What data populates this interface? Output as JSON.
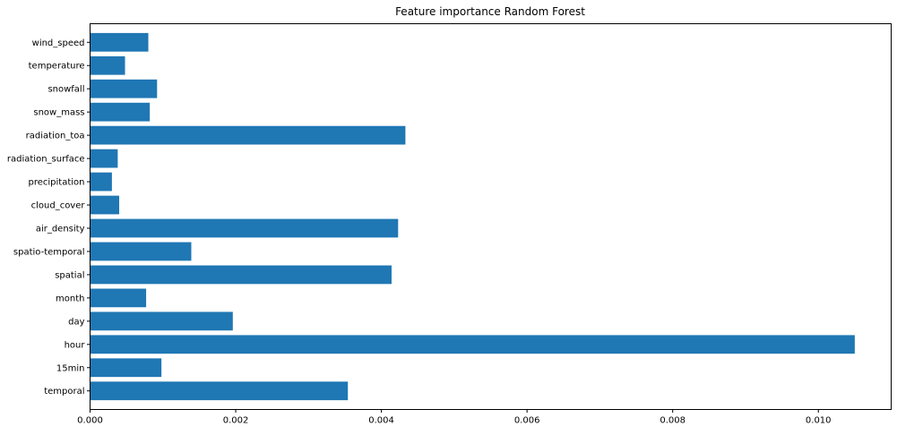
{
  "chart_data": {
    "type": "bar",
    "orientation": "horizontal",
    "title": "Feature importance Random Forest",
    "xlabel": "",
    "ylabel": "",
    "categories": [
      "temporal",
      "15min",
      "hour",
      "day",
      "month",
      "spatial",
      "spatio-temporal",
      "air_density",
      "cloud_cover",
      "precipitation",
      "radiation_surface",
      "radiation_toa",
      "snow_mass",
      "snowfall",
      "temperature",
      "wind_speed"
    ],
    "values": [
      0.00354,
      0.00098,
      0.0105,
      0.00196,
      0.00077,
      0.00414,
      0.00139,
      0.00423,
      0.0004,
      0.0003,
      0.00038,
      0.00433,
      0.00082,
      0.00092,
      0.00048,
      0.0008
    ],
    "xlim": [
      0,
      0.011
    ],
    "xticks": [
      0.0,
      0.002,
      0.004,
      0.006,
      0.008,
      0.01
    ],
    "xtick_labels": [
      "0.000",
      "0.002",
      "0.004",
      "0.006",
      "0.008",
      "0.010"
    ],
    "grid": false,
    "legend": "none",
    "bar_color": "#1f77b4",
    "axis_color": "#000000"
  }
}
